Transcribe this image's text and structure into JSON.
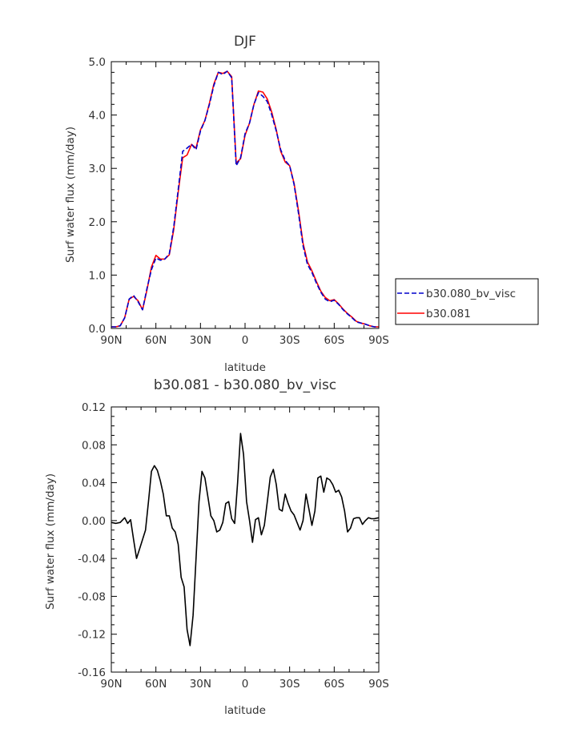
{
  "chart_data": [
    {
      "type": "line",
      "title": "DJF",
      "xlabel": "latitude",
      "ylabel": "Surf water flux (mm/day)",
      "ylim": [
        0.0,
        5.0
      ],
      "xlim": [
        90,
        -90
      ],
      "y_ticks": [
        "0.0",
        "1.0",
        "2.0",
        "3.0",
        "4.0",
        "5.0"
      ],
      "x_ticks": [
        "90N",
        "60N",
        "30N",
        "0",
        "30S",
        "60S",
        "90S"
      ],
      "grid": false,
      "legend_position": "right",
      "series": [
        {
          "name": "b30.080_bv_visc",
          "color": "#0000cc",
          "style": "dashed",
          "x": [
            90,
            87,
            84,
            81,
            78,
            75,
            72,
            69,
            66,
            63,
            60,
            57,
            54,
            51,
            48,
            45,
            42,
            39,
            36,
            33,
            30,
            27,
            24,
            21,
            18,
            15,
            12,
            9,
            6,
            3,
            0,
            -3,
            -6,
            -9,
            -12,
            -15,
            -18,
            -21,
            -24,
            -27,
            -30,
            -33,
            -36,
            -39,
            -42,
            -45,
            -48,
            -51,
            -54,
            -57,
            -60,
            -63,
            -66,
            -69,
            -72,
            -75,
            -78,
            -81,
            -84,
            -87,
            -90
          ],
          "y": [
            0.03,
            0.03,
            0.05,
            0.2,
            0.55,
            0.62,
            0.5,
            0.35,
            0.75,
            1.1,
            1.32,
            1.28,
            1.3,
            1.4,
            1.9,
            2.6,
            3.32,
            3.38,
            3.45,
            3.35,
            3.7,
            3.9,
            4.2,
            4.55,
            4.8,
            4.76,
            4.82,
            4.7,
            3.05,
            3.2,
            3.65,
            3.85,
            4.2,
            4.42,
            4.35,
            4.25,
            4.0,
            3.7,
            3.35,
            3.15,
            3.05,
            2.7,
            2.15,
            1.55,
            1.2,
            1.05,
            0.85,
            0.68,
            0.55,
            0.5,
            0.53,
            0.45,
            0.35,
            0.27,
            0.2,
            0.12,
            0.1,
            0.08,
            0.05,
            0.03,
            0.03
          ]
        },
        {
          "name": "b30.081",
          "color": "#ff0000",
          "style": "solid",
          "x": [
            90,
            87,
            84,
            81,
            78,
            75,
            72,
            69,
            66,
            63,
            60,
            57,
            54,
            51,
            48,
            45,
            42,
            39,
            36,
            33,
            30,
            27,
            24,
            21,
            18,
            15,
            12,
            9,
            6,
            3,
            0,
            -3,
            -6,
            -9,
            -12,
            -15,
            -18,
            -21,
            -24,
            -27,
            -30,
            -33,
            -36,
            -39,
            -42,
            -45,
            -48,
            -51,
            -54,
            -57,
            -60,
            -63,
            -66,
            -69,
            -72,
            -75,
            -78,
            -81,
            -84,
            -87,
            -90
          ],
          "y": [
            0.03,
            0.03,
            0.05,
            0.2,
            0.55,
            0.6,
            0.52,
            0.35,
            0.72,
            1.15,
            1.37,
            1.3,
            1.3,
            1.38,
            1.85,
            2.55,
            3.2,
            3.25,
            3.45,
            3.38,
            3.72,
            3.9,
            4.22,
            4.58,
            4.8,
            4.78,
            4.82,
            4.72,
            3.1,
            3.18,
            3.62,
            3.85,
            4.2,
            4.45,
            4.43,
            4.3,
            4.05,
            3.72,
            3.32,
            3.12,
            3.05,
            2.72,
            2.2,
            1.6,
            1.25,
            1.08,
            0.88,
            0.7,
            0.58,
            0.52,
            0.54,
            0.46,
            0.36,
            0.28,
            0.21,
            0.13,
            0.1,
            0.08,
            0.05,
            0.03,
            0.03
          ]
        }
      ]
    },
    {
      "type": "line",
      "title": "b30.081 - b30.080_bv_visc",
      "xlabel": "latitude",
      "ylabel": "Surf water flux (mm/day)",
      "ylim": [
        -0.16,
        0.12
      ],
      "xlim": [
        90,
        -90
      ],
      "y_ticks": [
        "0.12",
        "0.08",
        "0.04",
        "0.00",
        "-0.04",
        "-0.08",
        "-0.12",
        "-0.16"
      ],
      "x_ticks": [
        "90N",
        "60N",
        "30N",
        "0",
        "30S",
        "60S",
        "90S"
      ],
      "grid": false,
      "series": [
        {
          "color": "#000000",
          "style": "solid",
          "x": [
            90,
            87,
            84,
            81,
            79,
            77,
            75,
            73,
            71,
            69,
            67,
            65,
            63,
            61,
            59,
            57,
            55,
            53,
            51,
            49,
            47,
            45,
            43,
            41,
            39,
            37,
            35,
            33,
            31,
            29,
            27,
            25,
            23,
            21,
            19,
            17,
            15,
            13,
            11,
            9,
            7,
            5,
            3,
            1,
            -1,
            -3,
            -5,
            -7,
            -9,
            -11,
            -13,
            -15,
            -17,
            -19,
            -21,
            -23,
            -25,
            -27,
            -29,
            -31,
            -33,
            -35,
            -37,
            -39,
            -41,
            -43,
            -45,
            -47,
            -49,
            -51,
            -53,
            -55,
            -57,
            -59,
            -61,
            -63,
            -65,
            -67,
            -69,
            -71,
            -73,
            -75,
            -77,
            -79,
            -81,
            -83,
            -85,
            -87,
            -90
          ],
          "y": [
            -0.002,
            -0.003,
            -0.002,
            0.003,
            -0.003,
            0.001,
            -0.02,
            -0.04,
            -0.03,
            -0.02,
            -0.01,
            0.02,
            0.052,
            0.058,
            0.053,
            0.042,
            0.028,
            0.005,
            0.005,
            -0.008,
            -0.012,
            -0.025,
            -0.06,
            -0.07,
            -0.115,
            -0.132,
            -0.1,
            -0.04,
            0.02,
            0.052,
            0.045,
            0.025,
            0.005,
            0.0,
            -0.012,
            -0.01,
            -0.002,
            0.018,
            0.02,
            0.002,
            -0.003,
            0.04,
            0.092,
            0.07,
            0.02,
            0.0,
            -0.023,
            0.001,
            0.003,
            -0.015,
            -0.005,
            0.02,
            0.046,
            0.054,
            0.038,
            0.012,
            0.01,
            0.028,
            0.018,
            0.01,
            0.006,
            -0.002,
            -0.01,
            0.0,
            0.028,
            0.012,
            -0.005,
            0.01,
            0.045,
            0.047,
            0.03,
            0.045,
            0.043,
            0.038,
            0.03,
            0.032,
            0.025,
            0.01,
            -0.012,
            -0.008,
            0.002,
            0.003,
            0.003,
            -0.004,
            0.0,
            0.003,
            0.002,
            0.002,
            0.003
          ]
        }
      ]
    }
  ]
}
